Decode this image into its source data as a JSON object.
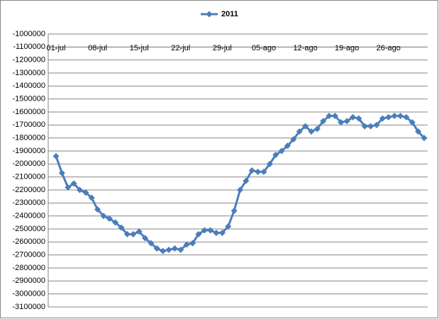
{
  "chart_data": {
    "type": "line",
    "categories": [
      "01-jul",
      null,
      null,
      null,
      null,
      null,
      null,
      "08-jul",
      null,
      null,
      null,
      null,
      null,
      null,
      "15-jul",
      null,
      null,
      null,
      null,
      null,
      null,
      "22-jul",
      null,
      null,
      null,
      null,
      null,
      null,
      "29-jul",
      null,
      null,
      null,
      null,
      null,
      null,
      "05-ago",
      null,
      null,
      null,
      null,
      null,
      null,
      "12-ago",
      null,
      null,
      null,
      null,
      null,
      null,
      "19-ago",
      null,
      null,
      null,
      null,
      null,
      null,
      "26-ago",
      null,
      null,
      null,
      null,
      null,
      null
    ],
    "series": [
      {
        "name": "2011",
        "color": "#4a7ebb",
        "values": [
          -1940000,
          -2070000,
          -2180000,
          -2150000,
          -2200000,
          -2220000,
          -2260000,
          -2350000,
          -2400000,
          -2420000,
          -2450000,
          -2490000,
          -2540000,
          -2540000,
          -2520000,
          -2570000,
          -2610000,
          -2650000,
          -2670000,
          -2660000,
          -2650000,
          -2660000,
          -2620000,
          -2610000,
          -2540000,
          -2510000,
          -2510000,
          -2530000,
          -2530000,
          -2480000,
          -2360000,
          -2200000,
          -2130000,
          -2050000,
          -2060000,
          -2060000,
          -2000000,
          -1930000,
          -1900000,
          -1860000,
          -1810000,
          -1750000,
          -1710000,
          -1750000,
          -1730000,
          -1670000,
          -1630000,
          -1630000,
          -1680000,
          -1670000,
          -1640000,
          -1650000,
          -1710000,
          -1710000,
          -1700000,
          -1650000,
          -1640000,
          -1630000,
          -1630000,
          -1640000,
          -1680000,
          -1750000,
          -1800000
        ]
      }
    ],
    "ylim": [
      -3100000,
      -1000000
    ],
    "yticks": [
      -1000000,
      -1100000,
      -1200000,
      -1300000,
      -1400000,
      -1500000,
      -1600000,
      -1700000,
      -1800000,
      -1900000,
      -2000000,
      -2100000,
      -2200000,
      -2300000,
      -2400000,
      -2500000,
      -2600000,
      -2700000,
      -2800000,
      -2900000,
      -3000000,
      -3100000
    ],
    "x_axis_crosses": -1100000,
    "grid": true,
    "legend": "top"
  }
}
